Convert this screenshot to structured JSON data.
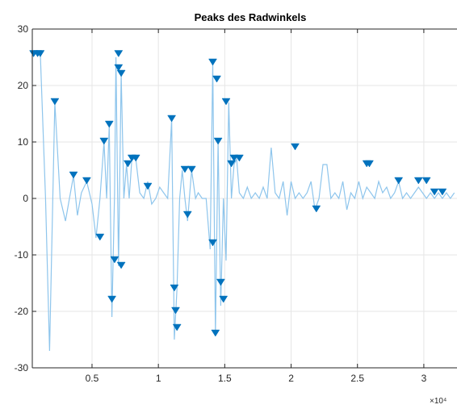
{
  "chart_data": {
    "type": "line",
    "title": "Peaks des Radwinkels",
    "xlabel": "",
    "ylabel": "",
    "x_multiplier_label": "×10⁴",
    "xlim": [
      500,
      32500
    ],
    "ylim": [
      -30,
      30
    ],
    "xticks": [
      5000,
      10000,
      15000,
      20000,
      25000,
      30000
    ],
    "xtick_labels": [
      "0.5",
      "1",
      "1.5",
      "2",
      "2.5",
      "3"
    ],
    "yticks": [
      -30,
      -20,
      -10,
      0,
      10,
      20,
      30
    ],
    "ytick_labels": [
      "-30",
      "-20",
      "-10",
      "0",
      "10",
      "20",
      "30"
    ],
    "grid": true,
    "colors": {
      "line": "#8ec5ec",
      "marker": "#0072bd",
      "grid": "#e6e6e6",
      "axis": "#262626"
    },
    "series": [
      {
        "values_x": [
          600,
          1100,
          1500,
          1800,
          2200,
          2600,
          3000,
          3300,
          3600,
          3900,
          4200,
          4600,
          5000,
          5300,
          5600,
          5900,
          6100,
          6300,
          6500,
          6700,
          6800,
          7000,
          7200,
          7400,
          7600,
          7800,
          8000,
          8300,
          8600,
          8900,
          9200,
          9500,
          9800,
          10100,
          10400,
          10700,
          11000,
          11200,
          11400,
          11600,
          11800,
          12000,
          12200,
          12500,
          12800,
          13000,
          13300,
          13600,
          13900,
          14100,
          14300,
          14500,
          14700,
          14900,
          15100,
          15300,
          15500,
          15700,
          15900,
          16100,
          16400,
          16700,
          17000,
          17300,
          17600,
          17900,
          18200,
          18500,
          18800,
          19100,
          19400,
          19700,
          20000,
          20300,
          20600,
          20900,
          21200,
          21500,
          21800,
          22100,
          22400,
          22700,
          23000,
          23300,
          23600,
          23900,
          24200,
          24500,
          24800,
          25100,
          25400,
          25700,
          26000,
          26300,
          26600,
          26900,
          27200,
          27500,
          27800,
          28100,
          28400,
          28700,
          29000,
          29300,
          29600,
          29900,
          30200,
          30500,
          30800,
          31100,
          31400,
          31700,
          32000,
          32300
        ],
        "values_y": [
          25.5,
          25.8,
          0,
          -27,
          17,
          0,
          -4,
          0,
          4,
          -3,
          1,
          3,
          -1,
          -7,
          0,
          10,
          0,
          13,
          -21,
          1,
          25,
          -12,
          22,
          0,
          6,
          0,
          7,
          7,
          1,
          0,
          3,
          -1,
          0,
          2,
          1,
          0,
          14,
          -25,
          -16,
          0,
          5,
          0,
          -4,
          5,
          0,
          1,
          0,
          0,
          -9,
          24,
          -24,
          10,
          -19,
          0,
          -11,
          17,
          0,
          6,
          7,
          1,
          0,
          2,
          0,
          1,
          0,
          2,
          0,
          9,
          1,
          0,
          3,
          -3,
          3,
          0,
          1,
          0,
          1,
          3,
          -2,
          0,
          6,
          6,
          0,
          1,
          0,
          3,
          -2,
          1,
          0,
          3,
          0,
          2,
          1,
          0,
          3,
          1,
          2,
          0,
          1,
          3,
          0,
          1,
          0,
          1,
          2,
          1,
          0,
          1,
          0,
          1,
          0,
          1,
          0,
          1
        ]
      }
    ],
    "peaks": {
      "x": [
        600,
        900,
        1100,
        2200,
        3600,
        4600,
        5600,
        5900,
        6300,
        6500,
        6700,
        7000,
        7000,
        7200,
        7200,
        7700,
        8000,
        8300,
        9200,
        11000,
        11200,
        11300,
        11400,
        12000,
        12200,
        12500,
        14100,
        14100,
        14300,
        14400,
        14500,
        14700,
        14900,
        15100,
        15500,
        15700,
        16100,
        20300,
        21900,
        25700,
        25900,
        28100,
        29600,
        30200,
        30800,
        31400
      ],
      "y": [
        25.5,
        25.5,
        25.5,
        17,
        4,
        3,
        -7,
        10,
        13,
        -18,
        -11,
        25.5,
        23,
        22,
        -12,
        6,
        7,
        7,
        2,
        14,
        -16,
        -20,
        -23,
        5,
        -3,
        5,
        24,
        -8,
        -24,
        21,
        10,
        -15,
        -18,
        17,
        6,
        7,
        7,
        9,
        -2,
        6,
        6,
        3,
        3,
        3,
        1,
        1
      ]
    }
  }
}
